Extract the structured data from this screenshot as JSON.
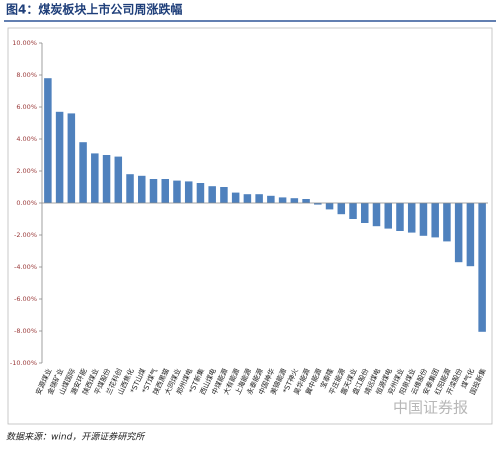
{
  "chart_data": {
    "type": "bar",
    "title": "图4：煤炭板块上市公司周涨跌幅",
    "source": "数据来源：wind，开源证券研究所",
    "watermark": "中国证券报",
    "categories": [
      "安源煤业",
      "金瑞矿业",
      "山煤国际",
      "潞安环能",
      "陕西煤业",
      "平煤股份",
      "兰花科创",
      "山西焦化",
      "*ST山煤",
      "*ST煤气",
      "陕西黑猫",
      "大同煤业",
      "郑州煤电",
      "*ST新集",
      "西山煤电",
      "中煤能源",
      "大有能源",
      "上海能源",
      "永泰能源",
      "中国神华",
      "美锦能源",
      "*ST神火",
      "昊华能源",
      "冀中能源",
      "宝泰隆",
      "平庄能源",
      "露天煤业",
      "盘江股份",
      "靖远煤电",
      "恒源煤电",
      "兖州煤业",
      "阳泉煤业",
      "云维股份",
      "安泰集团",
      "红阳能源",
      "开滦股份",
      "煤气化",
      "国投新集"
    ],
    "values": [
      7.8,
      5.7,
      5.6,
      3.8,
      3.1,
      3.0,
      2.9,
      1.8,
      1.7,
      1.5,
      1.5,
      1.4,
      1.35,
      1.25,
      1.05,
      1.0,
      0.65,
      0.55,
      0.55,
      0.45,
      0.35,
      0.3,
      0.25,
      -0.1,
      -0.4,
      -0.7,
      -1.0,
      -1.25,
      -1.45,
      -1.6,
      -1.75,
      -1.85,
      -2.05,
      -2.15,
      -2.4,
      -3.7,
      -3.95,
      -8.05
    ],
    "color": "#4f81bd",
    "ylim": [
      -10,
      10
    ],
    "yticks": [
      {
        "value": -10,
        "label": "-10.00%"
      },
      {
        "value": -8,
        "label": "-8.00%"
      },
      {
        "value": -6,
        "label": "-6.00%"
      },
      {
        "value": -4,
        "label": "-4.00%"
      },
      {
        "value": -2,
        "label": "-2.00%"
      },
      {
        "value": 0,
        "label": "0.00%"
      },
      {
        "value": 2,
        "label": "2.00%"
      },
      {
        "value": 4,
        "label": "4.00%"
      },
      {
        "value": 6,
        "label": "6.00%"
      },
      {
        "value": 8,
        "label": "8.00%"
      },
      {
        "value": 10,
        "label": "10.00%"
      }
    ]
  }
}
